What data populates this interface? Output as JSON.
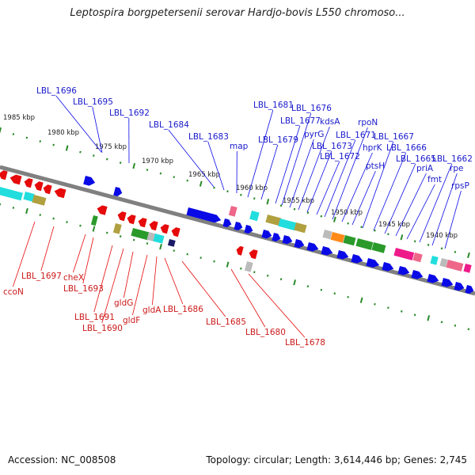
{
  "title": "Leptospira borgpetersenii serovar Hardjo-bovis L550 chromoso...",
  "footer": {
    "accession": "Accession: NC_008508",
    "stats": "Topology: circular; Length: 3,614,446 bp; Genes: 2,745"
  },
  "ticks": [
    {
      "kbp": 1985,
      "label": "1985 kbp"
    },
    {
      "kbp": 1980,
      "label": "1980 kbp"
    },
    {
      "kbp": 1975,
      "label": "1975 kbp"
    },
    {
      "kbp": 1970,
      "label": "1970 kbp"
    },
    {
      "kbp": 1965,
      "label": "1965 kbp"
    },
    {
      "kbp": 1960,
      "label": "1960 kbp"
    },
    {
      "kbp": 1955,
      "label": "1955 kbp"
    },
    {
      "kbp": 1950,
      "label": "1950 kbp"
    },
    {
      "kbp": 1945,
      "label": "1945 kbp"
    },
    {
      "kbp": 1940,
      "label": "1940 kbp"
    }
  ],
  "forward_labels": [
    "LBL_1696",
    "LBL_1695",
    "LBL_1692",
    "LBL_1684",
    "LBL_1683",
    "map",
    "LBL_1681",
    "LBL_1679",
    "LBL_1677",
    "LBL_1676",
    "pyrG",
    "kdsA",
    "LBL_1673",
    "LBL_1672",
    "LBL_1671",
    "rpoN",
    "hprK",
    "ptsH",
    "LBL_1667",
    "LBL_1666",
    "LBL_1665",
    "priA",
    "fmt",
    "LBL_1662",
    "rpe",
    "rpsP"
  ],
  "reverse_labels": [
    "ccoN",
    "LBL_1697",
    "cheX",
    "LBL_1693",
    "LBL_1691",
    "LBL_1690",
    "gldG",
    "gldF",
    "gldA",
    "LBL_1686",
    "LBL_1685",
    "LBL_1680",
    "LBL_1678"
  ],
  "colors": {
    "forward": "#0a0ae6",
    "reverse": "#e60a0a",
    "backbone": "#808080",
    "tick": "#2a8a2a",
    "cyan": "#22dddd",
    "olive": "#b0a040",
    "green": "#2a9a2a",
    "orange": "#ff8a1a",
    "magenta": "#ee1a8a",
    "gray": "#bbbbbb"
  }
}
